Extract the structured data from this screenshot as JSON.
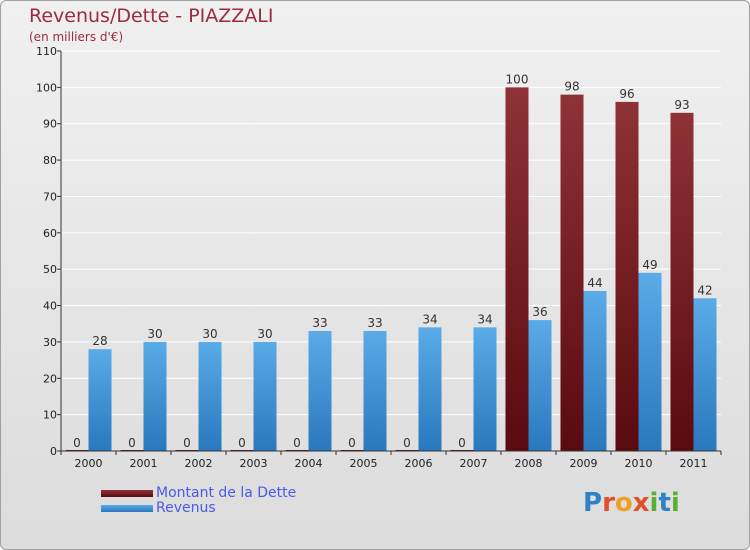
{
  "title": "Revenus/Dette - PIAZZALI",
  "subtitle": "(en milliers d'€)",
  "legend": {
    "debt_label": "Montant de la Dette",
    "revenue_label": "Revenus"
  },
  "logo": {
    "text": "Proxiti"
  },
  "colors": {
    "debt": "#6b0f15",
    "debt_light": "#8e3236",
    "revenue": "#2e82c8",
    "revenue_light": "#5aabe8",
    "axis_text": "#222222",
    "title": "#9c2b3c",
    "legend_text": "#4a5ae8"
  },
  "chart_data": {
    "type": "bar",
    "title": "Revenus/Dette - PIAZZALI",
    "ylabel": "(en milliers d'€)",
    "xlabel": "",
    "categories": [
      "2000",
      "2001",
      "2002",
      "2003",
      "2004",
      "2005",
      "2006",
      "2007",
      "2008",
      "2009",
      "2010",
      "2011"
    ],
    "series": [
      {
        "name": "Montant de la Dette",
        "values": [
          0,
          0,
          0,
          0,
          0,
          0,
          0,
          0,
          100,
          98,
          96,
          93
        ]
      },
      {
        "name": "Revenus",
        "values": [
          28,
          30,
          30,
          30,
          33,
          33,
          34,
          34,
          36,
          44,
          49,
          42
        ]
      }
    ],
    "ylim": [
      0,
      110
    ],
    "yticks": [
      0,
      10,
      20,
      30,
      40,
      50,
      60,
      70,
      80,
      90,
      100,
      110
    ],
    "grid": true,
    "legend_position": "bottom-left"
  }
}
